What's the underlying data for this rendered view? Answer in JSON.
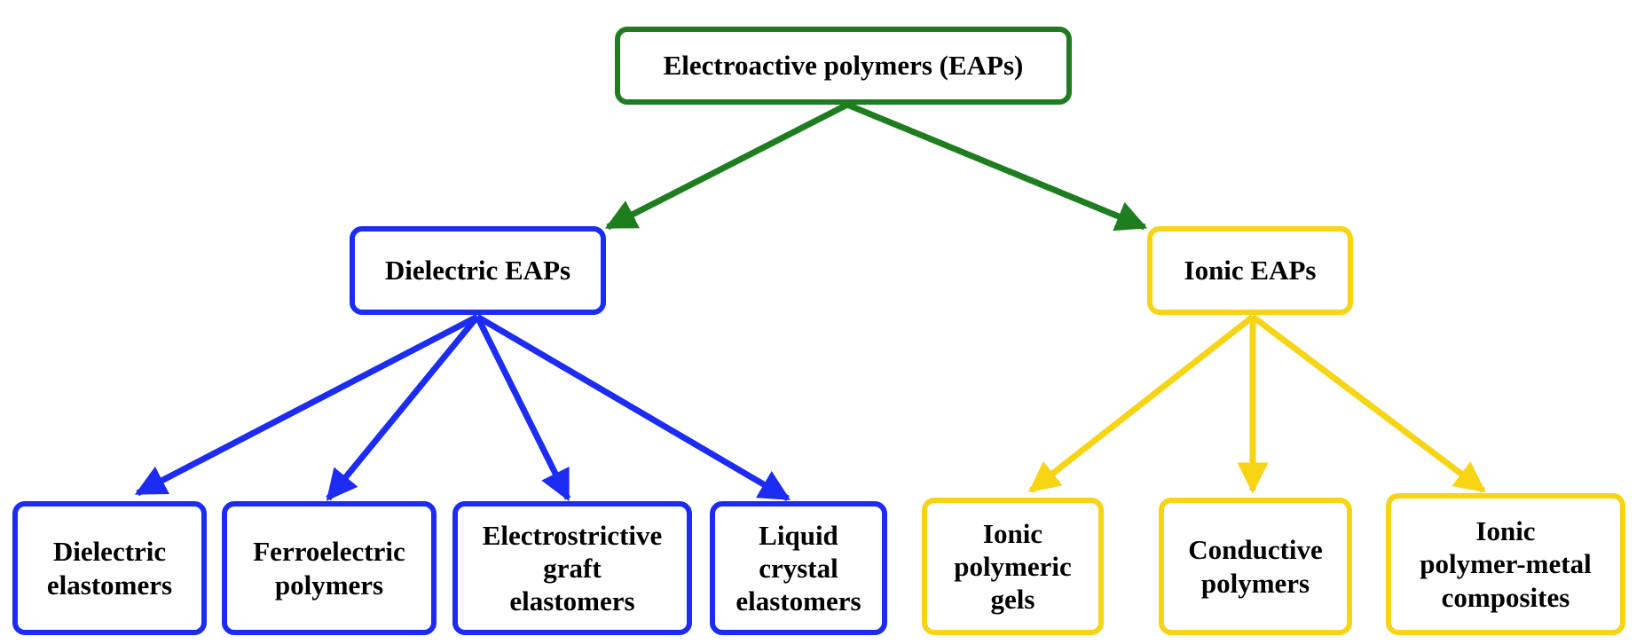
{
  "colors": {
    "root": "#1e7d1e",
    "dielectric": "#1c2cf2",
    "ionic": "#f7d414"
  },
  "root": {
    "label": "Electroactive polymers (EAPs)"
  },
  "branches": {
    "dielectric": {
      "label": "Dielectric EAPs",
      "children": [
        {
          "label": "Dielectric\nelastomers"
        },
        {
          "label": "Ferroelectric\npolymers"
        },
        {
          "label": "Electrostrictive\ngraft\nelastomers"
        },
        {
          "label": "Liquid\ncrystal\nelastomers"
        }
      ]
    },
    "ionic": {
      "label": "Ionic EAPs",
      "children": [
        {
          "label": "Ionic\npolymeric\ngels"
        },
        {
          "label": "Conductive\npolymers"
        },
        {
          "label": "Ionic\npolymer-metal\ncomposites"
        }
      ]
    }
  }
}
